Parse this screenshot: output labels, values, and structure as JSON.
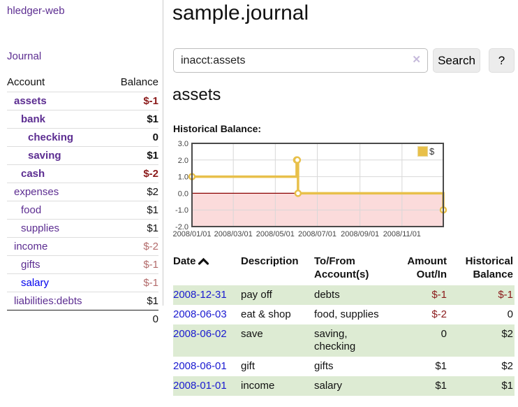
{
  "app": {
    "title": "hledger-web"
  },
  "sidebar": {
    "journal_link": "Journal",
    "accounts": {
      "header": {
        "account": "Account",
        "balance": "Balance"
      },
      "rows": [
        {
          "label": "assets",
          "balance": "$-1",
          "indent": 1,
          "bold": true,
          "negative": true
        },
        {
          "label": "bank",
          "balance": "$1",
          "indent": 2,
          "bold": true
        },
        {
          "label": "checking",
          "balance": "0",
          "indent": 3,
          "bold": true
        },
        {
          "label": "saving",
          "balance": "$1",
          "indent": 3,
          "bold": true
        },
        {
          "label": "cash",
          "balance": "$-2",
          "indent": 2,
          "bold": true,
          "negative": true
        },
        {
          "label": "expenses",
          "balance": "$2",
          "indent": 1
        },
        {
          "label": "food",
          "balance": "$1",
          "indent": 2
        },
        {
          "label": "supplies",
          "balance": "$1",
          "indent": 2
        },
        {
          "label": "income",
          "balance": "$-2",
          "indent": 1,
          "negative": true,
          "muted": true
        },
        {
          "label": "gifts",
          "balance": "$-1",
          "indent": 2,
          "negative": true,
          "muted": true
        },
        {
          "label": "salary",
          "balance": "$-1",
          "indent": 2,
          "negative": true,
          "muted": true,
          "unvisited": true
        },
        {
          "label": "liabilities:debts",
          "balance": "$1",
          "indent": 1
        }
      ],
      "total": "0"
    }
  },
  "main": {
    "title": "sample.journal",
    "search": {
      "value": "inacct:assets",
      "clear_icon": "✕",
      "search_button": "Search",
      "help_button": "?"
    },
    "account_heading": "assets",
    "chart_title": "Historical Balance:",
    "register": {
      "headers": [
        "Date",
        "Description",
        "To/From Account(s)",
        "Amount Out/In",
        "Historical Balance"
      ],
      "rows": [
        {
          "date": "2008-12-31",
          "description": "pay off",
          "accounts": "debts",
          "amount": "$-1",
          "balance": "$-1",
          "amount_negative": true,
          "balance_negative": true
        },
        {
          "date": "2008-06-03",
          "description": "eat & shop",
          "accounts": "food, supplies",
          "amount": "$-2",
          "balance": "0",
          "amount_negative": true
        },
        {
          "date": "2008-06-02",
          "description": "save",
          "accounts": "saving, checking",
          "amount": "0",
          "balance": "$2"
        },
        {
          "date": "2008-06-01",
          "description": "gift",
          "accounts": "gifts",
          "amount": "$1",
          "balance": "$2"
        },
        {
          "date": "2008-01-01",
          "description": "income",
          "accounts": "salary",
          "amount": "$1",
          "balance": "$1"
        }
      ]
    }
  },
  "chart_data": {
    "type": "line",
    "step": true,
    "title": "Historical Balance",
    "series": [
      {
        "name": "$",
        "x": [
          "2008-01-01",
          "2008-06-01",
          "2008-06-02",
          "2008-06-03",
          "2008-12-31"
        ],
        "values": [
          1,
          2,
          2,
          0,
          -1
        ]
      }
    ],
    "xlim": [
      "2008-01-01",
      "2008-12-31"
    ],
    "ylim": [
      -2,
      3
    ],
    "yticks": [
      3,
      2,
      1,
      0,
      -1,
      -2
    ],
    "xticks": [
      "2008-01-01",
      "2008-03-01",
      "2008-05-01",
      "2008-07-01",
      "2008-09-01",
      "2008-11-01"
    ],
    "legend": {
      "label": "$",
      "position": "top-right"
    },
    "grid": true,
    "colors": {
      "line": "#e8c04a",
      "marker_fill": "#ffffff",
      "negative_region": "#fbdbdb",
      "zero_line": "#8b0000",
      "grid": "#d8d8d8",
      "border": "#4a4a4a",
      "tick_text": "#444444"
    }
  }
}
